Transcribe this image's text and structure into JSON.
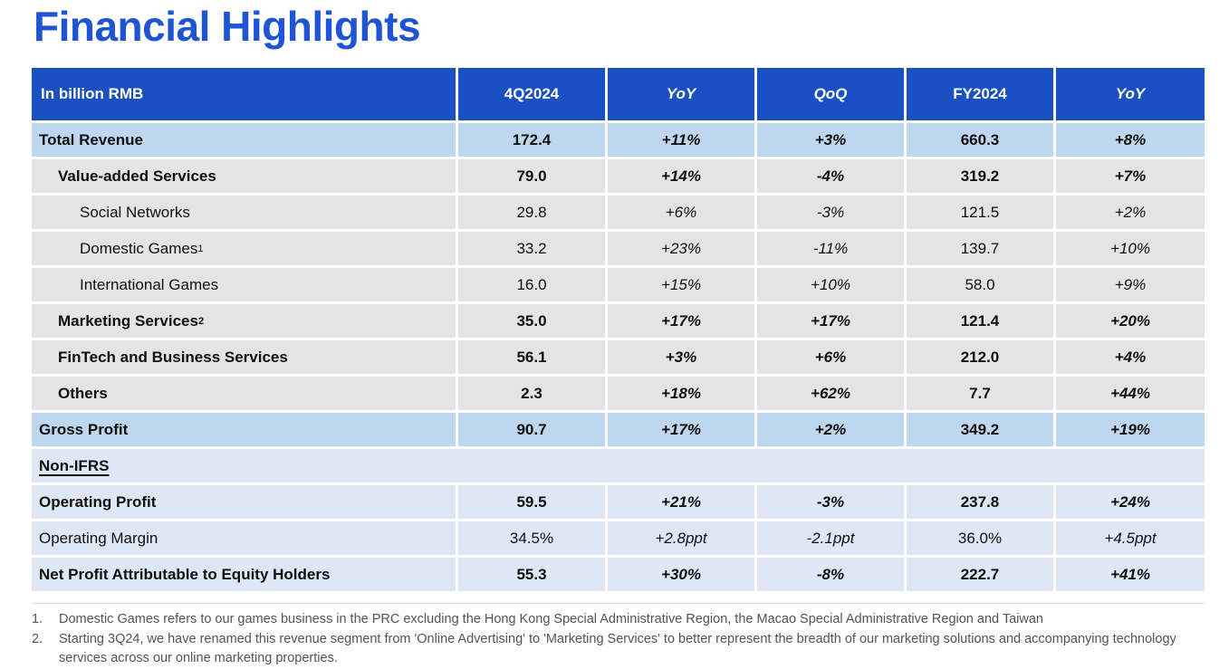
{
  "page_title": "Financial Highlights",
  "colors": {
    "title_blue": "#1F55D5",
    "header_bg": "#1A50C2",
    "row_highlight_blue": "#BFD7EE",
    "row_gray": "#E4E4E4",
    "row_light_blue": "#DEE8F5"
  },
  "table": {
    "columns": [
      "In billion RMB",
      "4Q2024",
      "YoY",
      "QoQ",
      "FY2024",
      "YoY"
    ],
    "rows": [
      {
        "label": "Total Revenue",
        "sup": "",
        "indent": 0,
        "bold": true,
        "bg": "blue",
        "span": false,
        "values": [
          "172.4",
          "+11%",
          "+3%",
          "660.3",
          "+8%"
        ]
      },
      {
        "label": "Value-added Services",
        "sup": "",
        "indent": 1,
        "bold": true,
        "bg": "gray",
        "span": false,
        "values": [
          "79.0",
          "+14%",
          "-4%",
          "319.2",
          "+7%"
        ]
      },
      {
        "label": "Social Networks",
        "sup": "",
        "indent": 2,
        "bold": false,
        "bg": "gray",
        "span": false,
        "values": [
          "29.8",
          "+6%",
          "-3%",
          "121.5",
          "+2%"
        ]
      },
      {
        "label": "Domestic Games",
        "sup": "1",
        "indent": 2,
        "bold": false,
        "bg": "gray",
        "span": false,
        "values": [
          "33.2",
          "+23%",
          "-11%",
          "139.7",
          "+10%"
        ]
      },
      {
        "label": "International Games",
        "sup": "",
        "indent": 2,
        "bold": false,
        "bg": "gray",
        "span": false,
        "values": [
          "16.0",
          "+15%",
          "+10%",
          "58.0",
          "+9%"
        ]
      },
      {
        "label": "Marketing Services",
        "sup": "2",
        "indent": 1,
        "bold": true,
        "bg": "gray",
        "span": false,
        "values": [
          "35.0",
          "+17%",
          "+17%",
          "121.4",
          "+20%"
        ]
      },
      {
        "label": "FinTech and Business Services",
        "sup": "",
        "indent": 1,
        "bold": true,
        "bg": "gray",
        "span": false,
        "values": [
          "56.1",
          "+3%",
          "+6%",
          "212.0",
          "+4%"
        ]
      },
      {
        "label": "Others",
        "sup": "",
        "indent": 1,
        "bold": true,
        "bg": "gray",
        "span": false,
        "values": [
          "2.3",
          "+18%",
          "+62%",
          "7.7",
          "+44%"
        ]
      },
      {
        "label": "Gross Profit",
        "sup": "",
        "indent": 0,
        "bold": true,
        "bg": "blue",
        "span": false,
        "values": [
          "90.7",
          "+17%",
          "+2%",
          "349.2",
          "+19%"
        ]
      },
      {
        "label": "Non-IFRS",
        "sup": "",
        "indent": 0,
        "bold": true,
        "bg": "lightblue",
        "span": true,
        "underline": true,
        "values": []
      },
      {
        "label": "Operating Profit",
        "sup": "",
        "indent": 0,
        "bold": true,
        "bg": "lightblue",
        "span": false,
        "values": [
          "59.5",
          "+21%",
          "-3%",
          "237.8",
          "+24%"
        ]
      },
      {
        "label": "Operating Margin",
        "sup": "",
        "indent": 0,
        "bold": false,
        "bg": "lightblue",
        "span": false,
        "values": [
          "34.5%",
          "+2.8ppt",
          "-2.1ppt",
          "36.0%",
          "+4.5ppt"
        ]
      },
      {
        "label": "Net Profit Attributable to Equity Holders",
        "sup": "",
        "indent": 0,
        "bold": true,
        "bg": "lightblue",
        "span": false,
        "values": [
          "55.3",
          "+30%",
          "-8%",
          "222.7",
          "+41%"
        ]
      }
    ]
  },
  "footnotes": [
    {
      "num": "1.",
      "text": "Domestic Games refers to our games business in the PRC excluding the Hong Kong Special Administrative Region, the Macao Special Administrative Region and Taiwan"
    },
    {
      "num": "2.",
      "text": "Starting 3Q24, we have renamed this revenue segment from 'Online Advertising' to 'Marketing Services' to better represent the breadth of our marketing solutions and accompanying technology services across our online marketing properties."
    }
  ]
}
